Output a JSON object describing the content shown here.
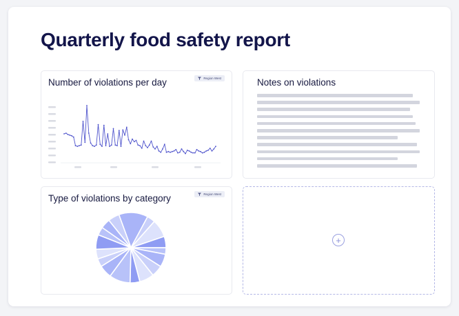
{
  "page": {
    "title": "Quarterly food safety report"
  },
  "violations_chart": {
    "title": "Number of violations per day",
    "filter_label": "Region West",
    "filter_icon": "filter-icon"
  },
  "notes": {
    "title": "Notes on violations",
    "line_count": 10
  },
  "category_chart": {
    "title": "Type of violations by category",
    "filter_label": "Region West",
    "filter_icon": "filter-icon"
  },
  "empty_slot": {
    "icon": "plus-circle-icon"
  },
  "colors": {
    "title": "#13154a",
    "line": "#4e53cc",
    "pie_shades": [
      "#a9b4f8",
      "#c9d0fa",
      "#dde2fc",
      "#8f9cf3",
      "#b8c2f9"
    ]
  },
  "chart_data": [
    {
      "type": "line",
      "title": "Number of violations per day",
      "y": [
        4.2,
        4.3,
        4.1,
        4.0,
        3.9,
        3.7,
        2.4,
        2.3,
        2.4,
        2.5,
        6.1,
        2.9,
        8.5,
        4.3,
        2.8,
        2.4,
        2.3,
        2.5,
        5.6,
        2.6,
        2.3,
        5.5,
        2.4,
        4.2,
        2.3,
        2.5,
        5.0,
        2.5,
        2.4,
        4.7,
        2.3,
        4.8,
        4.0,
        5.2,
        3.3,
        2.7,
        3.4,
        3.0,
        3.2,
        2.5,
        2.4,
        2.0,
        3.1,
        2.4,
        2.1,
        2.5,
        3.1,
        2.2,
        1.9,
        2.3,
        1.6,
        1.4,
        1.9,
        2.6,
        1.4,
        1.5,
        1.4,
        1.5,
        1.6,
        1.8,
        1.3,
        1.4,
        1.9,
        1.5,
        1.2,
        1.7,
        1.6,
        1.4,
        1.3,
        1.3,
        1.8,
        1.6,
        1.5,
        1.3,
        1.4,
        1.6,
        1.7,
        2.0,
        1.6,
        1.9,
        2.3
      ],
      "grid": false,
      "legend": "none"
    },
    {
      "type": "pie",
      "title": "Type of violations by category",
      "values": [
        18,
        5,
        11,
        7,
        4,
        8,
        7,
        9,
        6,
        13,
        8,
        5,
        6,
        9,
        5,
        6,
        7
      ],
      "legend": "none"
    }
  ]
}
